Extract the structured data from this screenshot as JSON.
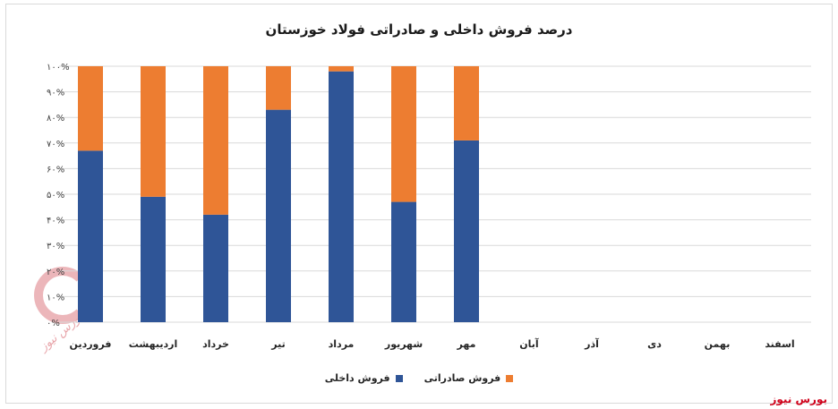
{
  "chart_data": {
    "type": "bar",
    "stacked": true,
    "title": "درصد فروش داخلی و صادراتی فولاد خوزستان",
    "categories": [
      "فروردین",
      "اردیبهشت",
      "خرداد",
      "تیر",
      "مرداد",
      "شهریور",
      "مهر",
      "آبان",
      "آذر",
      "دی",
      "بهمن",
      "اسفند"
    ],
    "series": [
      {
        "name": "فروش داخلی",
        "color": "#2f5597",
        "values": [
          67,
          49,
          42,
          83,
          98,
          47,
          71,
          null,
          null,
          null,
          null,
          null
        ]
      },
      {
        "name": "فروش صادراتی",
        "color": "#ed7d31",
        "values": [
          33,
          51,
          58,
          17,
          2,
          53,
          29,
          null,
          null,
          null,
          null,
          null
        ]
      }
    ],
    "y_ticks": [
      "۰%",
      "۱۰%",
      "۲۰%",
      "۳۰%",
      "۴۰%",
      "۵۰%",
      "۶۰%",
      "۷۰%",
      "۸۰%",
      "۹۰%",
      "۱۰۰%"
    ],
    "ylim": [
      0,
      100
    ],
    "grid": true,
    "legend_position": "bottom",
    "x_direction": "rtl-ordered-left-to-right"
  },
  "source_label": "بورس نیوز",
  "watermark_text": "بورس نیوز"
}
